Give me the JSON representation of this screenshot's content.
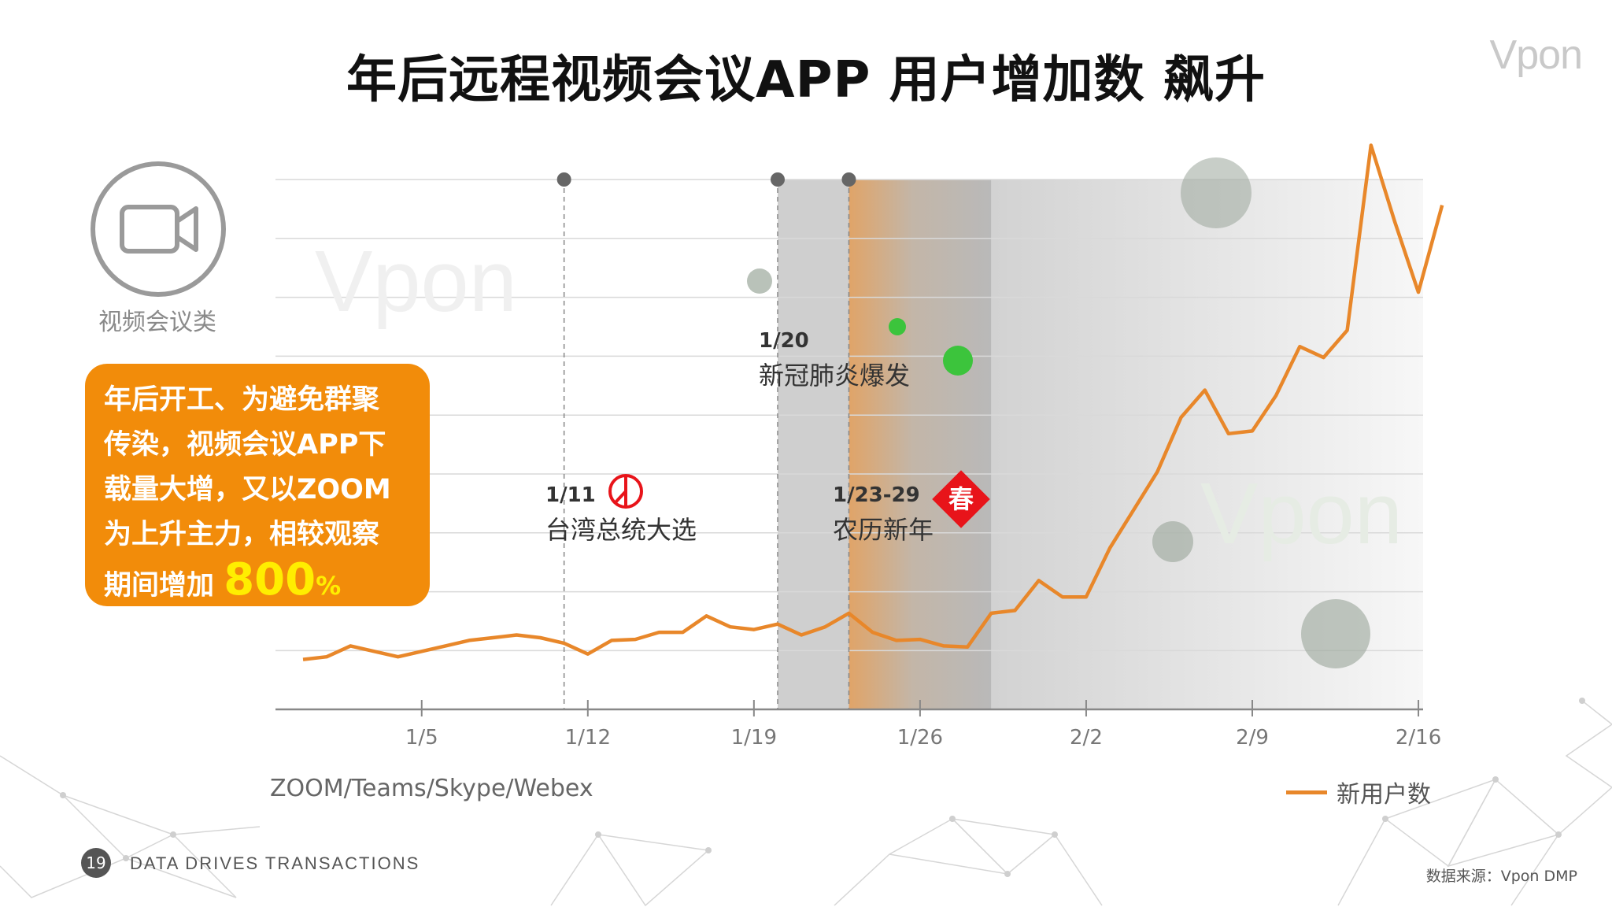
{
  "title": "年后远程视频会议APP 用户增加数 飙升",
  "brand": "Vpon",
  "category_label": "视频会议类",
  "callout": {
    "line1": "年后开工、为避免群聚",
    "line2": "传染，视频会议APP下",
    "line3": "载量大增，又以ZOOM",
    "line4": "为上升主力，相较观察",
    "line5_prefix": "期间增加",
    "highlight_value": "800",
    "highlight_unit": "%"
  },
  "annotations": {
    "election": {
      "date": "1/11",
      "text": "台湾总统大选"
    },
    "outbreak": {
      "date": "1/20",
      "text": "新冠肺炎爆发"
    },
    "new_year": {
      "date": "1/23-29",
      "text": "农历新年",
      "badge": "春"
    }
  },
  "series_caption": "ZOOM/Teams/Skype/Webex",
  "page_number": "19",
  "tagline": "DATA DRIVES TRANSACTIONS",
  "source_note": "数据来源：Vpon DMP",
  "colors": {
    "line": "#e8872a",
    "callout_bg": "#f28c0a",
    "highlight": "#ffee00",
    "badge": "#e8141a"
  },
  "chart_data": {
    "type": "line",
    "title": "",
    "xlabel": "",
    "ylabel": "",
    "x_tick_labels": [
      "1/5",
      "1/12",
      "1/19",
      "1/26",
      "2/2",
      "2/9",
      "2/16"
    ],
    "y_ticks_labeled": false,
    "ylim": [
      0,
      9
    ],
    "grid": true,
    "legend_position": "bottom-right",
    "series": [
      {
        "name": "新用户数",
        "x": [
          "12/31",
          "1/1",
          "1/2",
          "1/3",
          "1/4",
          "1/5",
          "1/6",
          "1/7",
          "1/8",
          "1/9",
          "1/10",
          "1/11",
          "1/12",
          "1/13",
          "1/14",
          "1/15",
          "1/16",
          "1/17",
          "1/18",
          "1/19",
          "1/20",
          "1/21",
          "1/22",
          "1/23",
          "1/24",
          "1/25",
          "1/26",
          "1/27",
          "1/28",
          "1/29",
          "1/30",
          "1/31",
          "2/1",
          "2/2",
          "2/3",
          "2/4",
          "2/5",
          "2/6",
          "2/7",
          "2/8",
          "2/9",
          "2/10",
          "2/11",
          "2/12",
          "2/13",
          "2/14",
          "2/15",
          "2/16",
          "2/17"
        ],
        "values": [
          0.15,
          0.2,
          0.4,
          0.3,
          0.2,
          0.3,
          0.4,
          0.5,
          0.55,
          0.6,
          0.55,
          0.45,
          0.25,
          0.5,
          0.52,
          0.65,
          0.65,
          0.95,
          0.75,
          0.7,
          0.8,
          0.6,
          0.75,
          1.0,
          0.65,
          0.5,
          0.52,
          0.4,
          0.38,
          1.0,
          1.05,
          1.6,
          1.3,
          1.3,
          2.2,
          2.9,
          3.6,
          4.6,
          5.1,
          4.3,
          4.35,
          5.0,
          5.9,
          5.7,
          6.2,
          9.6,
          8.2,
          6.9,
          8.5
        ]
      }
    ],
    "markers": [
      {
        "date": "1/11",
        "label": "台湾总统大选"
      },
      {
        "date": "1/20",
        "label": "新冠肺炎爆发"
      },
      {
        "date": "1/23",
        "label": "农历新年"
      }
    ],
    "shaded_ranges": [
      {
        "from": "1/20",
        "to": "1/23"
      },
      {
        "from": "1/23",
        "to": "1/29",
        "label": "1/23-29"
      },
      {
        "from": "1/29",
        "to": "2/17"
      }
    ]
  }
}
